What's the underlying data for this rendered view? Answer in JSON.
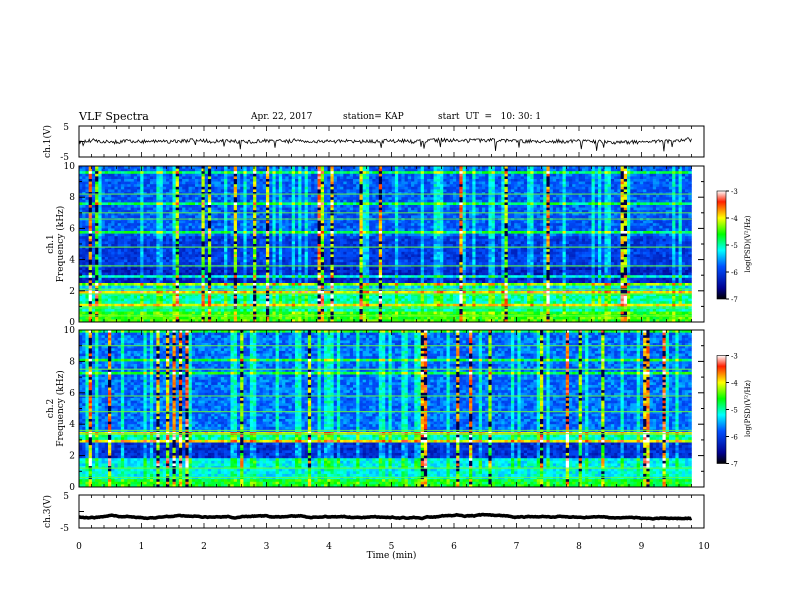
{
  "header": {
    "title": "VLF Spectra",
    "date": "Apr. 22, 2017",
    "station": "station= KAP",
    "start": "start  UT  =   10: 30: 1"
  },
  "chart_data": [
    {
      "type": "line",
      "panel": "ch1-waveform",
      "ylabel": "ch.1(V)",
      "ylim": [
        -5,
        5
      ],
      "yticks": [
        "5",
        "-5"
      ],
      "xlim": [
        0,
        10
      ],
      "series": [
        {
          "values_note": "",
          "level": 0.2,
          "noise_amplitude": 1.2
        }
      ]
    },
    {
      "type": "heatmap",
      "panel": "ch1-spectrogram",
      "ylabel": "ch.1\nFrequency (kHz)",
      "ylim": [
        0,
        10
      ],
      "yticks": [
        "0",
        "2",
        "4",
        "6",
        "8",
        "10"
      ],
      "xlim": [
        0,
        9.8
      ],
      "colorbar": {
        "label": "log(PSD)(V²/Hz)",
        "range": [
          -7,
          -3
        ],
        "ticks": [
          "-3",
          "-4",
          "-5",
          "-6",
          "-7"
        ]
      }
    },
    {
      "type": "heatmap",
      "panel": "ch2-spectrogram",
      "ylabel": "ch.2\nFrequency (kHz)",
      "ylim": [
        0,
        10
      ],
      "yticks": [
        "0",
        "2",
        "4",
        "6",
        "8",
        "10"
      ],
      "xlim": [
        0,
        9.8
      ],
      "colorbar": {
        "label": "log(PSD)(V²/Hz)",
        "range": [
          -7,
          -3
        ],
        "ticks": [
          "-3",
          "-4",
          "-5",
          "-6",
          "-7"
        ]
      }
    },
    {
      "type": "line",
      "panel": "ch3-waveform",
      "ylabel": "ch.3(V)",
      "ylim": [
        -5,
        5
      ],
      "yticks": [
        "5",
        "-5"
      ],
      "xlim": [
        0,
        10
      ],
      "series": [
        {
          "level": -1.6,
          "noise_amplitude": 0.1
        }
      ]
    }
  ],
  "xaxis": {
    "label": "Time  (min)",
    "ticks": [
      "0",
      "1",
      "2",
      "3",
      "4",
      "5",
      "6",
      "7",
      "8",
      "9",
      "10"
    ]
  }
}
